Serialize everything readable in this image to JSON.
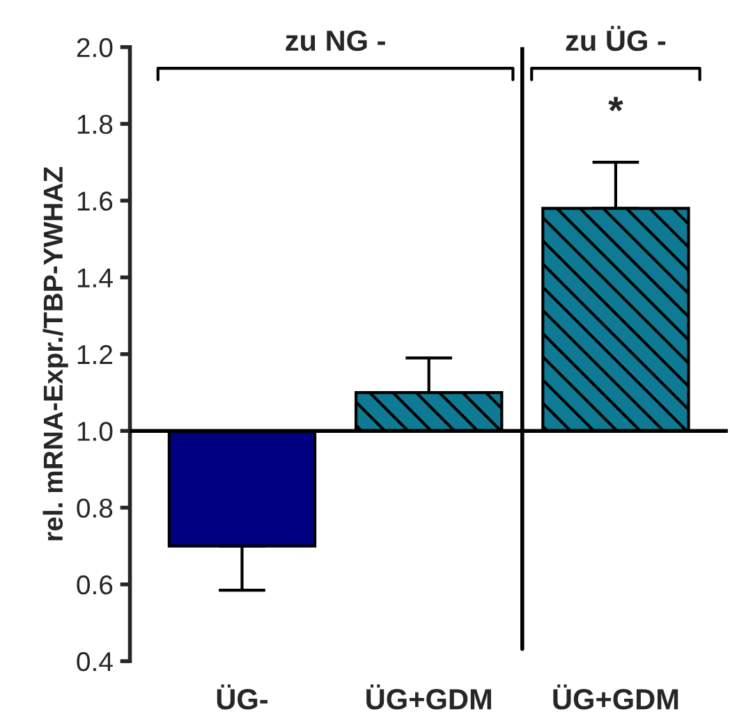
{
  "chart_data": {
    "type": "bar",
    "ylabel": "rel. mRNA-Expr./TBP-YWHAZ",
    "categories": [
      "ÜG-",
      "ÜG+GDM",
      "ÜG+GDM"
    ],
    "base": [
      1.0,
      1.0,
      1.0
    ],
    "values": [
      -0.3,
      0.1,
      0.58
    ],
    "errors": [
      [
        0.585,
        0.7
      ],
      [
        1.1,
        1.19
      ],
      [
        1.58,
        1.7
      ]
    ],
    "colors": [
      "#000080",
      "#0e7a93",
      "#0e7a93"
    ],
    "ylim": [
      0.4,
      2.0
    ],
    "yticks": [
      0.4,
      0.6,
      0.8,
      {
        "value": 1.0,
        "label": "1.0"
      },
      1.2,
      1.4,
      1.6,
      1.8,
      {
        "value": 2.0,
        "label": "2.0"
      }
    ],
    "ref_lines": [
      {
        "axis": "y",
        "value": 1.0
      }
    ],
    "annotations": [
      "zu NG -",
      "zu ÜG -",
      "*"
    ],
    "grid": false,
    "legend": false
  }
}
